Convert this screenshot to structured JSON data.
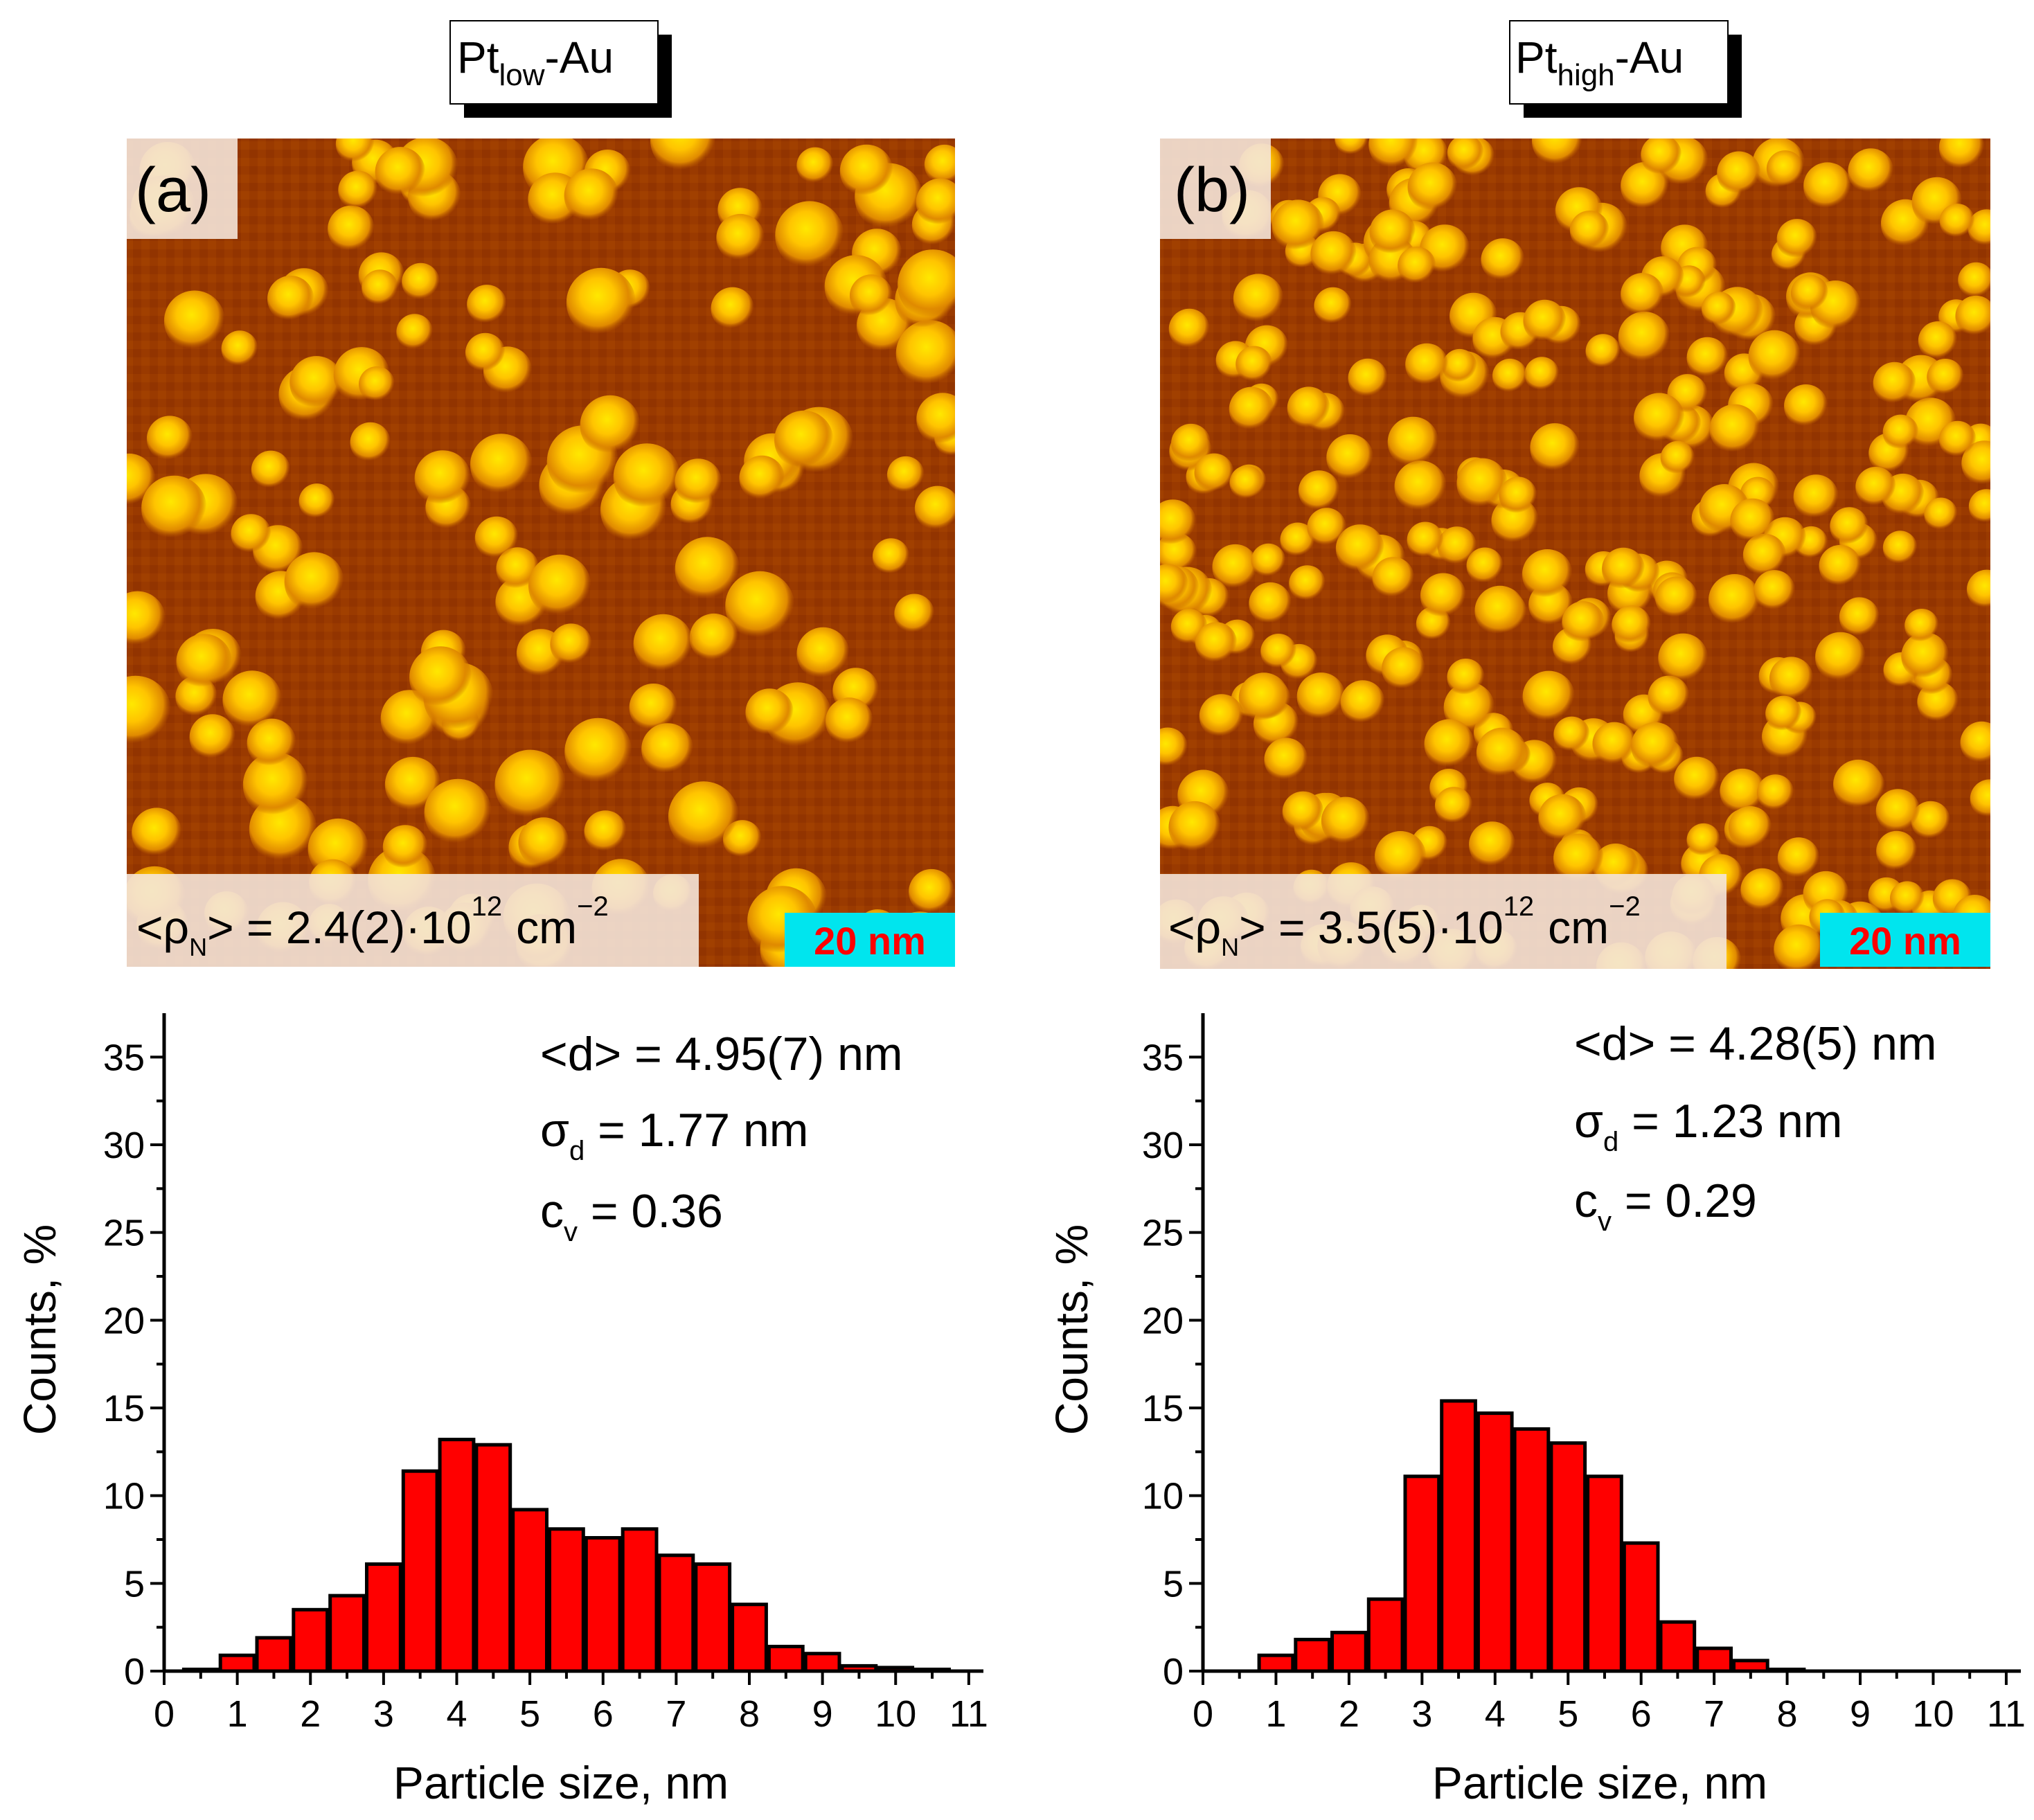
{
  "figure": {
    "panels": [
      {
        "title_base": "Pt",
        "title_sub": "low",
        "title_suffix": "-Au",
        "label": "(a)",
        "density_prefix": "<ρ",
        "density_sub": "N",
        "density_mid": "> = 2.4(2)·10",
        "density_exp": "12",
        "density_unit": "cm",
        "density_unit_exp": "−2",
        "scalebar": "20 nm",
        "stats": {
          "mean": "<d> = 4.95(7) nm",
          "sigma_symbol": "σ",
          "sigma_sub": "d",
          "sigma_value": " = 1.77 nm",
          "cv_symbol": "c",
          "cv_sub": "v",
          "cv_value": " = 0.36"
        }
      },
      {
        "title_base": "Pt",
        "title_sub": "high",
        "title_suffix": "-Au",
        "label": "(b)",
        "density_prefix": "<ρ",
        "density_sub": "N",
        "density_mid": "> = 3.5(5)·10",
        "density_exp": "12",
        "density_unit": "cm",
        "density_unit_exp": "−2",
        "scalebar": "20 nm",
        "stats": {
          "mean": "<d> = 4.28(5) nm",
          "sigma_symbol": "σ",
          "sigma_sub": "d",
          "sigma_value": " = 1.23 nm",
          "cv_symbol": "c",
          "cv_sub": "v",
          "cv_value": " = 0.29"
        }
      }
    ]
  },
  "colors": {
    "bar_fill": "#ff0000",
    "bar_stroke": "#000000",
    "scalebar_bg": "#00e5ee",
    "scalebar_text": "#ff0000",
    "afm_dark": "#6a1a00",
    "afm_mid": "#c85a00",
    "afm_bright": "#ffd700"
  },
  "chart_data": [
    {
      "type": "bar",
      "title": "Pt(low)-Au",
      "xlabel": "Particle size, nm",
      "ylabel": "Counts, %",
      "xlim": [
        0,
        11.2
      ],
      "ylim": [
        0,
        37.5
      ],
      "xticks": [
        0,
        1,
        2,
        3,
        4,
        5,
        6,
        7,
        8,
        9,
        10,
        11
      ],
      "yticks": [
        0,
        5,
        10,
        15,
        20,
        25,
        30,
        35
      ],
      "bin_width": 0.5,
      "x": [
        0.5,
        1.0,
        1.5,
        2.0,
        2.5,
        3.0,
        3.5,
        4.0,
        4.5,
        5.0,
        5.5,
        6.0,
        6.5,
        7.0,
        7.5,
        8.0,
        8.5,
        9.0,
        9.5,
        10.0,
        10.5
      ],
      "values": [
        0.1,
        0.9,
        1.9,
        3.5,
        4.3,
        6.1,
        11.4,
        13.2,
        12.9,
        9.2,
        8.1,
        7.6,
        8.1,
        6.6,
        6.1,
        3.8,
        1.4,
        1.0,
        0.3,
        0.2,
        0.1
      ]
    },
    {
      "type": "bar",
      "title": "Pt(high)-Au",
      "xlabel": "Particle size, nm",
      "ylabel": "Counts, %",
      "xlim": [
        0,
        11.2
      ],
      "ylim": [
        0,
        37.5
      ],
      "xticks": [
        0,
        1,
        2,
        3,
        4,
        5,
        6,
        7,
        8,
        9,
        10,
        11
      ],
      "yticks": [
        0,
        5,
        10,
        15,
        20,
        25,
        30,
        35
      ],
      "bin_width": 0.5,
      "x": [
        1.0,
        1.5,
        2.0,
        2.5,
        3.0,
        3.5,
        4.0,
        4.5,
        5.0,
        5.5,
        6.0,
        6.5,
        7.0,
        7.5,
        8.0
      ],
      "values": [
        0.9,
        1.8,
        2.2,
        4.1,
        11.1,
        15.4,
        14.7,
        13.8,
        13.0,
        11.1,
        7.3,
        2.8,
        1.3,
        0.6,
        0.1
      ]
    }
  ]
}
